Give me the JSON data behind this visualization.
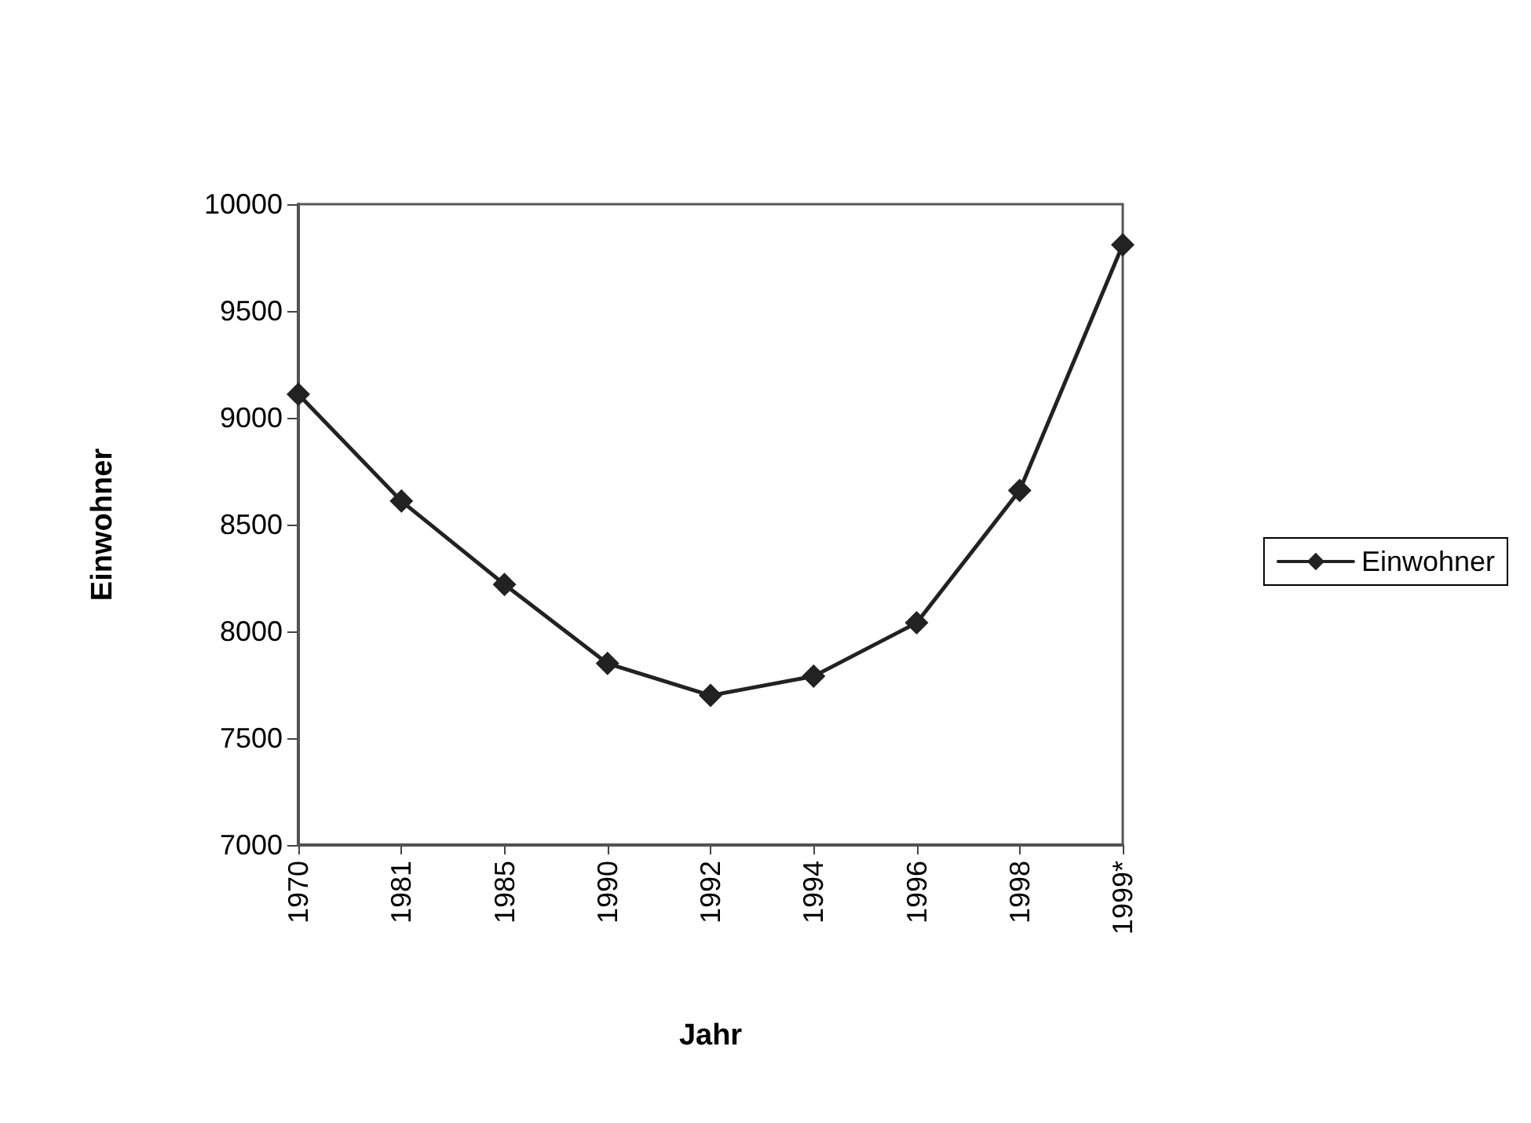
{
  "chart_data": {
    "type": "line",
    "xlabel": "Jahr",
    "ylabel": "Einwohner",
    "categories": [
      "1970",
      "1981",
      "1985",
      "1990",
      "1992",
      "1994",
      "1996",
      "1998",
      "1999*"
    ],
    "series": [
      {
        "name": "Einwohner",
        "color": "#222222",
        "values": [
          9110,
          8610,
          8220,
          7850,
          7700,
          7790,
          8040,
          8660,
          9810
        ]
      }
    ],
    "ylim": [
      7000,
      10000
    ],
    "yticks": [
      7000,
      7500,
      8000,
      8500,
      9000,
      9500,
      10000
    ],
    "grid": false,
    "legend": "right",
    "marker": "diamond",
    "line_style": "solid"
  }
}
